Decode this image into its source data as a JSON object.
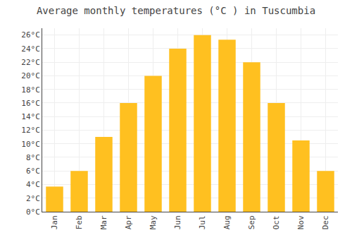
{
  "chart_data": {
    "type": "bar",
    "title": "Average monthly temperatures (°C ) in Tuscumbia",
    "categories": [
      "Jan",
      "Feb",
      "Mar",
      "Apr",
      "May",
      "Jun",
      "Jul",
      "Aug",
      "Sep",
      "Oct",
      "Nov",
      "Dec"
    ],
    "values": [
      3.7,
      6.0,
      11.0,
      16.0,
      20.0,
      24.0,
      26.0,
      25.3,
      22.0,
      16.0,
      10.5,
      6.0
    ],
    "color": "#FFC020",
    "ylim": [
      0,
      27
    ],
    "yticks": [
      {
        "value": 0,
        "label": "0°C"
      },
      {
        "value": 2,
        "label": "2°C"
      },
      {
        "value": 4,
        "label": "4°C"
      },
      {
        "value": 6,
        "label": "6°C"
      },
      {
        "value": 8,
        "label": "8°C"
      },
      {
        "value": 10,
        "label": "10°C"
      },
      {
        "value": 12,
        "label": "12°C"
      },
      {
        "value": 14,
        "label": "14°C"
      },
      {
        "value": 16,
        "label": "16°C"
      },
      {
        "value": 18,
        "label": "18°C"
      },
      {
        "value": 20,
        "label": "20°C"
      },
      {
        "value": 22,
        "label": "22°C"
      },
      {
        "value": 24,
        "label": "24°C"
      },
      {
        "value": 26,
        "label": "26°C"
      }
    ],
    "grid": true
  }
}
